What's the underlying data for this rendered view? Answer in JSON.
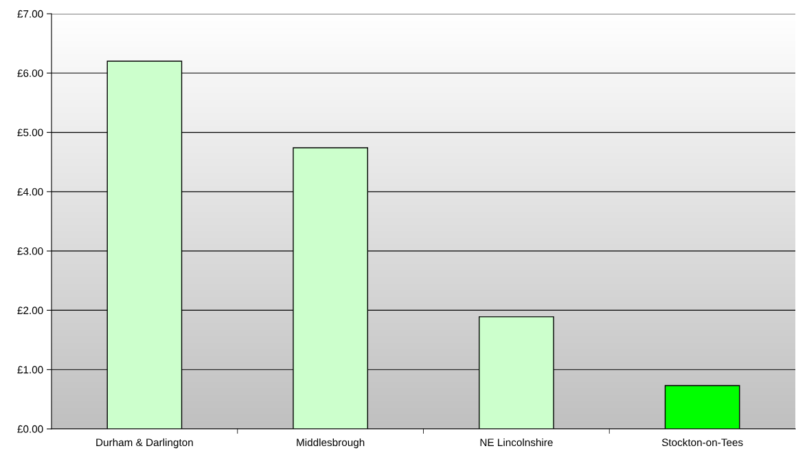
{
  "chart_data": {
    "type": "bar",
    "categories": [
      "Durham & Darlington",
      "Middlesbrough",
      "NE Lincolnshire",
      "Stockton-on-Tees"
    ],
    "values": [
      6.2,
      4.74,
      1.89,
      0.73
    ],
    "colors": [
      "#ccffcc",
      "#ccffcc",
      "#ccffcc",
      "#00ff00"
    ],
    "ylim": [
      0,
      7
    ],
    "yticks": [
      {
        "value": 0,
        "label": "£0.00"
      },
      {
        "value": 1,
        "label": "£1.00"
      },
      {
        "value": 2,
        "label": "£2.00"
      },
      {
        "value": 3,
        "label": "£3.00"
      },
      {
        "value": 4,
        "label": "£4.00"
      },
      {
        "value": 5,
        "label": "£5.00"
      },
      {
        "value": 6,
        "label": "£6.00"
      },
      {
        "value": 7,
        "label": "£7.00"
      }
    ],
    "grid": "y"
  }
}
